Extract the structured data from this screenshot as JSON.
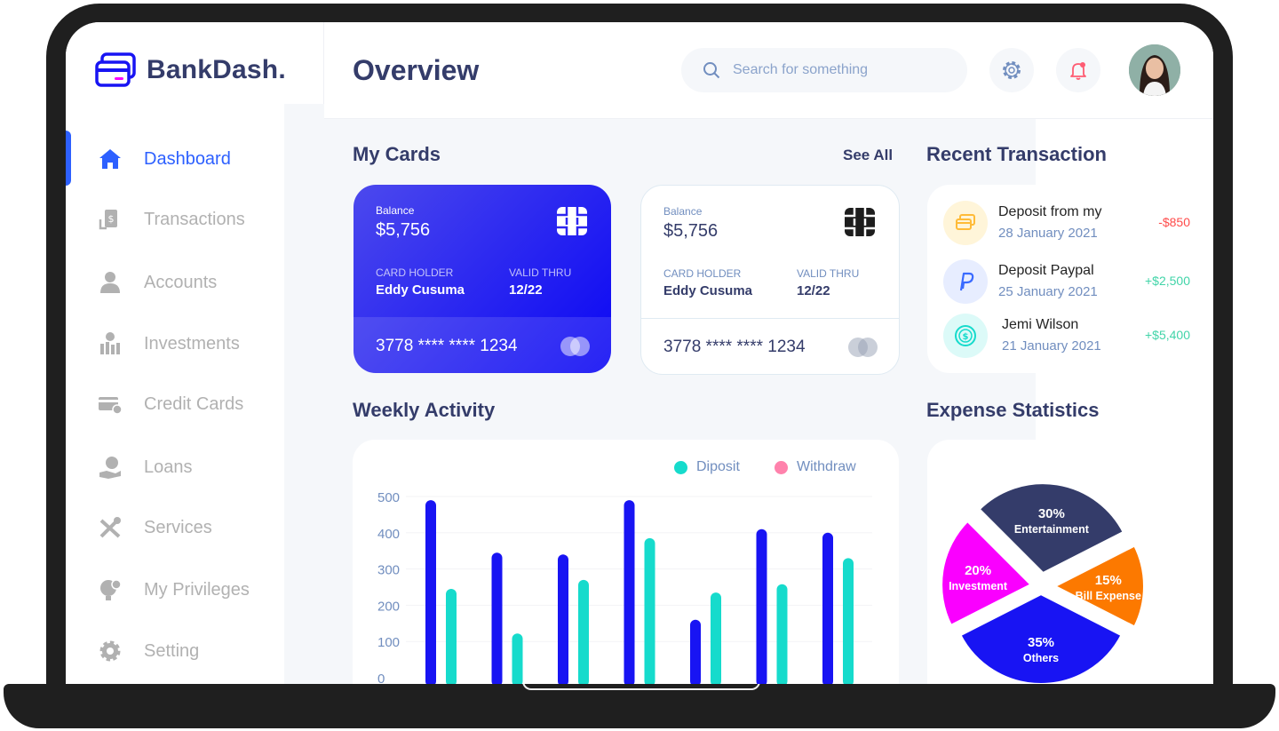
{
  "app": {
    "name": "BankDash."
  },
  "header": {
    "title": "Overview",
    "search_placeholder": "Search for something"
  },
  "sidebar": {
    "items": [
      {
        "label": "Dashboard",
        "icon": "home-icon",
        "active": true
      },
      {
        "label": "Transactions",
        "icon": "transfer-icon"
      },
      {
        "label": "Accounts",
        "icon": "user-icon"
      },
      {
        "label": "Investments",
        "icon": "investment-icon"
      },
      {
        "label": "Credit Cards",
        "icon": "credit-card-icon"
      },
      {
        "label": "Loans",
        "icon": "loan-icon"
      },
      {
        "label": "Services",
        "icon": "tools-icon"
      },
      {
        "label": "My Privileges",
        "icon": "privilege-icon"
      },
      {
        "label": "Setting",
        "icon": "gear-icon"
      }
    ]
  },
  "cards_section": {
    "title": "My Cards",
    "see_all": "See All"
  },
  "cards": [
    {
      "balance_label": "Balance",
      "balance": "$5,756",
      "holder_label": "CARD HOLDER",
      "holder": "Eddy Cusuma",
      "valid_label": "VALID THRU",
      "valid": "12/22",
      "number": "3778 **** **** 1234",
      "style": "blue"
    },
    {
      "balance_label": "Balance",
      "balance": "$5,756",
      "holder_label": "CARD HOLDER",
      "holder": "Eddy Cusuma",
      "valid_label": "VALID THRU",
      "valid": "12/22",
      "number": "3778 **** **** 1234",
      "style": "white"
    }
  ],
  "transactions": {
    "title": "Recent Transaction",
    "items": [
      {
        "title": "Deposit from my",
        "date": "28 January 2021",
        "amount": "-$850",
        "icon": "card-icon"
      },
      {
        "title": "Deposit Paypal",
        "date": "25 January 2021",
        "amount": "+$2,500",
        "icon": "paypal-icon"
      },
      {
        "title": "Jemi Wilson",
        "date": "21 January 2021",
        "amount": "+$5,400",
        "icon": "dollar-icon"
      }
    ]
  },
  "weekly": {
    "title": "Weekly Activity",
    "legend": {
      "deposit": "Diposit",
      "withdraw": "Withdraw"
    }
  },
  "expense": {
    "title": "Expense Statistics"
  },
  "colors": {
    "accent": "#2d60ff",
    "deposit": "#16dbcc",
    "withdraw": "#ff82ac",
    "bar_dark": "#1814f3",
    "negative": "#ff4b4a",
    "positive": "#41d4a8"
  },
  "chart_data": [
    {
      "type": "bar",
      "title": "Weekly Activity",
      "ylim": [
        0,
        500
      ],
      "yticks": [
        "500",
        "400",
        "300",
        "200",
        "100",
        "0"
      ],
      "series": [
        {
          "name": "Diposit",
          "values": [
            490,
            345,
            340,
            490,
            160,
            410,
            400
          ]
        },
        {
          "name": "Withdraw",
          "values": [
            245,
            122,
            270,
            385,
            235,
            258,
            330
          ]
        }
      ]
    },
    {
      "type": "pie",
      "title": "Expense Statistics",
      "slices": [
        {
          "label": "Entertainment",
          "percent": "30%",
          "value": 30,
          "color": "#343c6a"
        },
        {
          "label": "Bill Expense",
          "percent": "15%",
          "value": 15,
          "color": "#fc7900"
        },
        {
          "label": "Others",
          "percent": "35%",
          "value": 35,
          "color": "#1814f3"
        },
        {
          "label": "Investment",
          "percent": "20%",
          "value": 20,
          "color": "#fa00ff"
        }
      ]
    }
  ]
}
